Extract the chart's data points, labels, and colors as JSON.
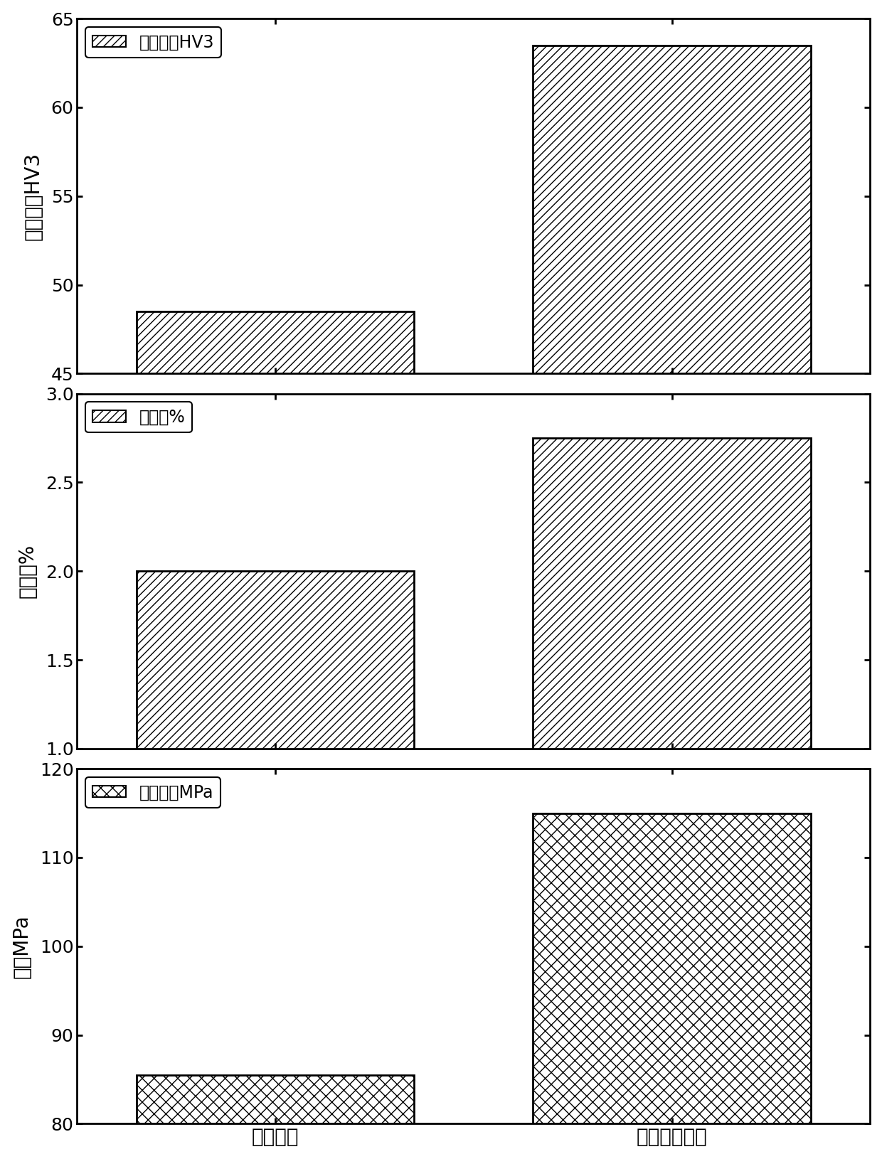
{
  "categories": [
    "钓铝合金",
    "钓铝锆系合金"
  ],
  "hardness_values": [
    48.5,
    63.5
  ],
  "hardness_ylim": [
    45,
    65
  ],
  "hardness_yticks": [
    45,
    50,
    55,
    60,
    65
  ],
  "hardness_ylabel": "维氏硬度HV3",
  "hardness_legend": "维氏硬度HV3",
  "elongation_values": [
    2.0,
    2.75
  ],
  "elongation_ylim": [
    1.0,
    3.0
  ],
  "elongation_yticks": [
    1.0,
    1.5,
    2.0,
    2.5,
    3.0
  ],
  "elongation_ylabel": "延伸率%",
  "elongation_legend": "延伸率%",
  "tensile_values": [
    85.5,
    115.0
  ],
  "tensile_ylim": [
    80,
    120
  ],
  "tensile_yticks": [
    80,
    90,
    100,
    110,
    120
  ],
  "tensile_ylabel": "拉伸MPa",
  "tensile_legend": "拉伸强度MPa",
  "bar_color": "#ffffff",
  "bar_edgecolor": "#000000",
  "background_color": "#ffffff",
  "linewidth": 2.0,
  "font_size": 20,
  "tick_font_size": 18,
  "legend_font_size": 17,
  "ylabel_font_size": 20
}
